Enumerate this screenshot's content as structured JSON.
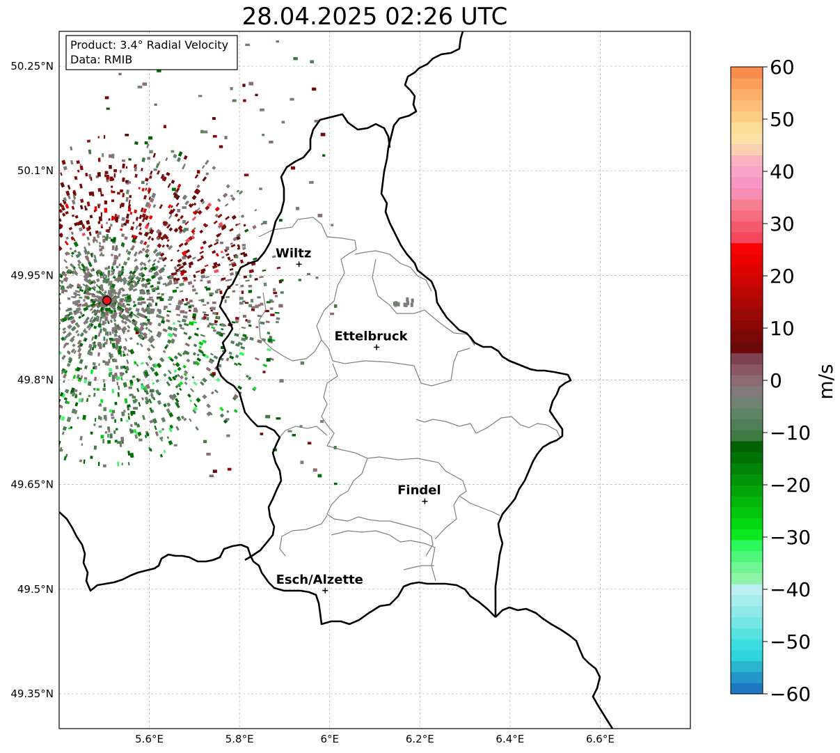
{
  "title": "28.04.2025 02:26 UTC",
  "info": {
    "product_line": "Product: 3.4° Radial Velocity",
    "data_line": "Data: RMIB"
  },
  "map": {
    "lon_range": [
      5.4,
      6.8
    ],
    "lat_range": [
      49.3,
      50.3
    ],
    "lon_ticks": [
      {
        "value": 5.6,
        "label": "5.6°E"
      },
      {
        "value": 5.8,
        "label": "5.8°E"
      },
      {
        "value": 6.0,
        "label": "6°E"
      },
      {
        "value": 6.2,
        "label": "6.2°E"
      },
      {
        "value": 6.4,
        "label": "6.4°E"
      },
      {
        "value": 6.6,
        "label": "6.6°E"
      }
    ],
    "lat_ticks": [
      {
        "value": 50.25,
        "label": "50.25°N"
      },
      {
        "value": 50.1,
        "label": "50.1°N"
      },
      {
        "value": 49.95,
        "label": "49.95°N"
      },
      {
        "value": 49.8,
        "label": "49.8°N"
      },
      {
        "value": 49.65,
        "label": "49.65°N"
      },
      {
        "value": 49.5,
        "label": "49.5°N"
      },
      {
        "value": 49.35,
        "label": "49.35°N"
      }
    ],
    "gridlines": true,
    "radar_site": {
      "lon": 5.506,
      "lat": 49.914,
      "color": "#e8141e"
    },
    "cities": [
      {
        "name": "Wiltz",
        "lon": 5.932,
        "lat": 49.966
      },
      {
        "name": "Ettelbruck",
        "lon": 6.104,
        "lat": 49.847
      },
      {
        "name": "Findel",
        "lon": 6.211,
        "lat": 49.626
      },
      {
        "name": "Esch/Alzette",
        "lon": 5.99,
        "lat": 49.498
      }
    ]
  },
  "colorbar": {
    "label": "m/s",
    "min": -60,
    "max": 60,
    "ticks": [
      {
        "value": 60,
        "label": "60"
      },
      {
        "value": 50,
        "label": "50"
      },
      {
        "value": 40,
        "label": "40"
      },
      {
        "value": 30,
        "label": "30"
      },
      {
        "value": 20,
        "label": "20"
      },
      {
        "value": 10,
        "label": "10"
      },
      {
        "value": 0,
        "label": "0"
      },
      {
        "value": -10,
        "label": "−10"
      },
      {
        "value": -20,
        "label": "−20"
      },
      {
        "value": -30,
        "label": "−30"
      },
      {
        "value": -40,
        "label": "−40"
      },
      {
        "value": -50,
        "label": "−50"
      },
      {
        "value": -60,
        "label": "−60"
      }
    ],
    "colors": [
      "#1f78c2",
      "#2596c9",
      "#2bb4cf",
      "#30d4dc",
      "#3cdcdf",
      "#58e2e1",
      "#74e6e5",
      "#8ee9e8",
      "#a6ecec",
      "#bdeff0",
      "#8ef5a8",
      "#6ff591",
      "#4ff67a",
      "#2cf75b",
      "#0ce820",
      "#02d711",
      "#02c60d",
      "#01b50b",
      "#01a409",
      "#019308",
      "#018306",
      "#017205",
      "#016204",
      "#3f7a42",
      "#507e56",
      "#5f8464",
      "#708372",
      "#827a7a",
      "#8c6b73",
      "#8a5764",
      "#7f4350",
      "#6b0a08",
      "#7a0806",
      "#890806",
      "#990905",
      "#aa0805",
      "#bb0703",
      "#cc0504",
      "#dc0303",
      "#ec0101",
      "#f80305",
      "#f4475a",
      "#f45a6c",
      "#f56d7e",
      "#f68090",
      "#f78fb4",
      "#f896c6",
      "#f9a4c6",
      "#f9b3bf",
      "#fad0b3",
      "#fce1a6",
      "#fcdd96",
      "#fbcd85",
      "#fbbe78",
      "#fbae6a",
      "#fb9d5a",
      "#fa8c4c"
    ]
  }
}
